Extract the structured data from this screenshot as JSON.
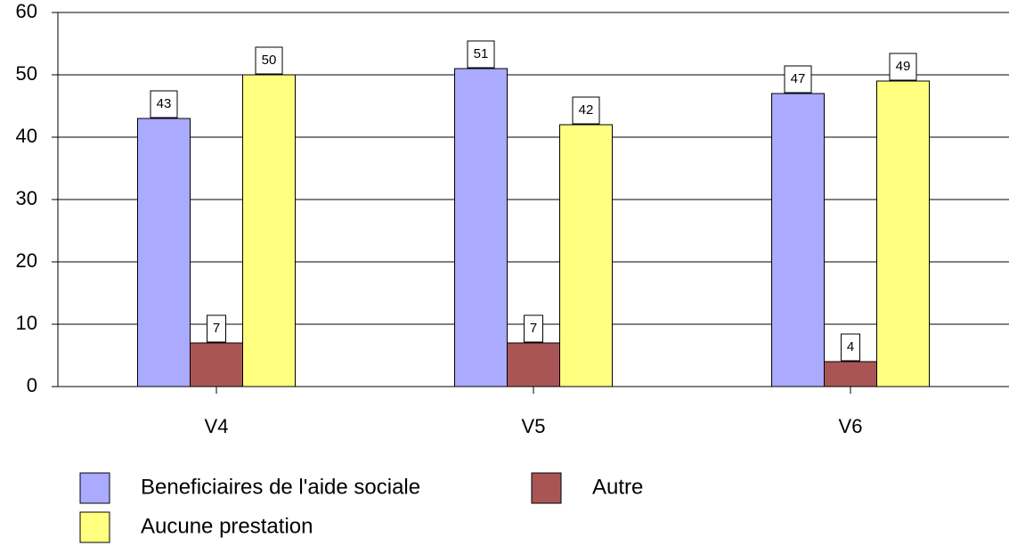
{
  "chart_data": {
    "type": "bar",
    "categories": [
      "V4",
      "V5",
      "V6"
    ],
    "series": [
      {
        "name": "Beneficiaires de l'aide sociale",
        "color": "#aaaaff",
        "values": [
          43,
          51,
          47
        ]
      },
      {
        "name": "Autre",
        "color": "#aa5555",
        "values": [
          7,
          7,
          4
        ]
      },
      {
        "name": "Aucune prestation",
        "color": "#ffff80",
        "values": [
          50,
          42,
          49
        ]
      }
    ],
    "ylim": [
      0,
      60
    ],
    "yticks": [
      0,
      10,
      20,
      30,
      40,
      50,
      60
    ],
    "grid": true,
    "legend": "bottom"
  }
}
